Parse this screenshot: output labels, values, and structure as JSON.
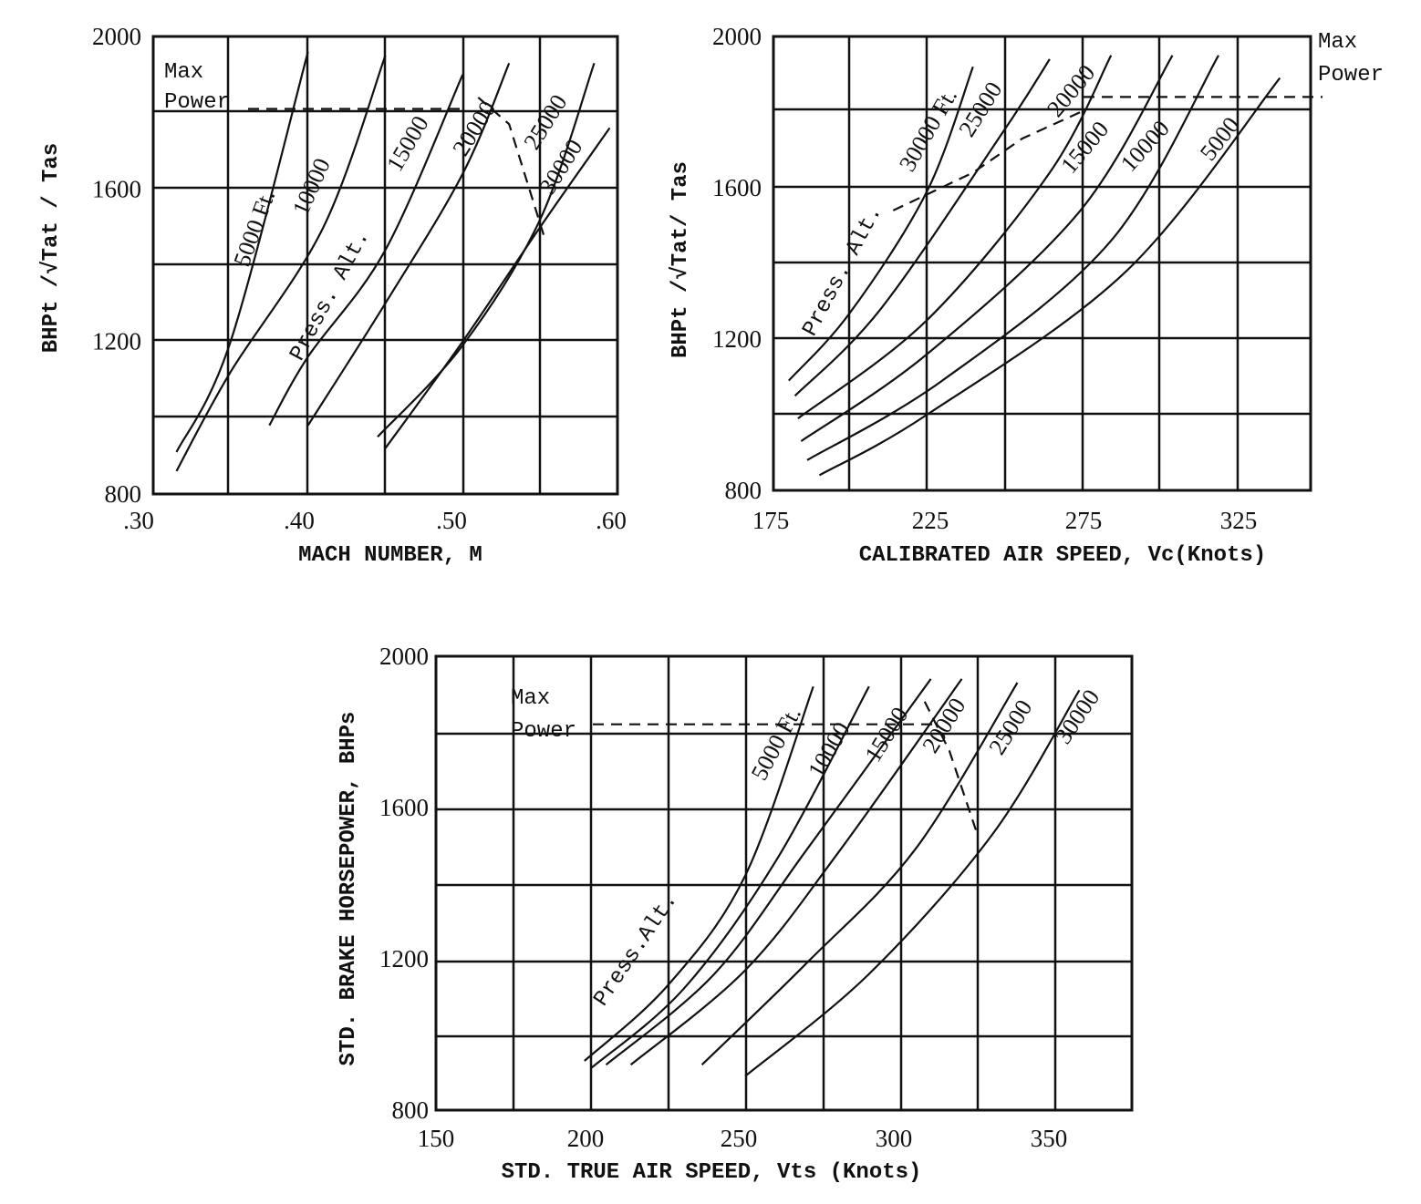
{
  "chart_data": [
    {
      "type": "line",
      "xlabel": "MACH NUMBER, M",
      "ylabel": "BHPt /√Tat / Tas",
      "xlim": [
        0.3,
        0.6
      ],
      "ylim": [
        800,
        2000
      ],
      "x_ticks": [
        ".30",
        ".40",
        ".50",
        ".60"
      ],
      "y_ticks": [
        "800",
        "1200",
        "1600",
        "2000"
      ],
      "max_power_label": [
        "Max",
        "Power"
      ],
      "max_power_value": 1810,
      "press_alt_label": "Press. Alt.",
      "series": [
        {
          "name": "5000 Ft.",
          "x": [
            0.315,
            0.35,
            0.4
          ],
          "y": [
            910,
            1200,
            1960
          ]
        },
        {
          "name": "10000",
          "x": [
            0.315,
            0.35,
            0.41,
            0.45
          ],
          "y": [
            860,
            1120,
            1500,
            1950
          ]
        },
        {
          "name": "15000",
          "x": [
            0.375,
            0.4,
            0.45,
            0.5
          ],
          "y": [
            980,
            1160,
            1440,
            1900
          ]
        },
        {
          "name": "20000",
          "x": [
            0.4,
            0.45,
            0.5,
            0.53
          ],
          "y": [
            980,
            1300,
            1640,
            1930
          ]
        },
        {
          "name": "25000",
          "x": [
            0.445,
            0.5,
            0.55,
            0.585
          ],
          "y": [
            950,
            1190,
            1520,
            1930
          ]
        },
        {
          "name": "30000",
          "x": [
            0.45,
            0.5,
            0.55,
            0.595
          ],
          "y": [
            920,
            1200,
            1500,
            1760
          ]
        }
      ],
      "limit_line": {
        "x": [
          0.51,
          0.53,
          0.553
        ],
        "y": [
          1840,
          1770,
          1470
        ]
      }
    },
    {
      "type": "line",
      "xlabel": "CALIBRATED AIR SPEED, Vc(Knots)",
      "ylabel": "BHPt /√Tat/ Tas",
      "xlim": [
        175,
        350
      ],
      "ylim": [
        800,
        2000
      ],
      "x_ticks": [
        "175",
        "225",
        "275",
        "325"
      ],
      "y_ticks": [
        "800",
        "1200",
        "1600",
        "2000"
      ],
      "max_power_label": [
        "Max",
        "Power"
      ],
      "max_power_value": 1840,
      "press_alt_label": "Press. Alt.",
      "series": [
        {
          "name": "30000 Ft.",
          "x": [
            180,
            200,
            225,
            240
          ],
          "y": [
            1090,
            1270,
            1590,
            1920
          ]
        },
        {
          "name": "25000",
          "x": [
            182,
            210,
            250,
            265
          ],
          "y": [
            1050,
            1280,
            1750,
            1940
          ]
        },
        {
          "name": "20000",
          "x": [
            183,
            225,
            265,
            285
          ],
          "y": [
            990,
            1250,
            1640,
            1950
          ]
        },
        {
          "name": "15000",
          "x": [
            184,
            225,
            275,
            305
          ],
          "y": [
            930,
            1160,
            1540,
            1950
          ]
        },
        {
          "name": "10000",
          "x": [
            186,
            230,
            285,
            320
          ],
          "y": [
            880,
            1090,
            1460,
            1950
          ]
        },
        {
          "name": "5000",
          "x": [
            190,
            225,
            290,
            340
          ],
          "y": [
            840,
            1000,
            1380,
            1890
          ]
        }
      ],
      "limit_line": {
        "x": [
          214,
          240,
          256,
          275
        ],
        "y": [
          1540,
          1640,
          1730,
          1800
        ]
      }
    },
    {
      "type": "line",
      "xlabel": "STD. TRUE AIR SPEED, Vts (Knots)",
      "ylabel": "STD. BRAKE HORSEPOWER, BHPs",
      "xlim": [
        150,
        375
      ],
      "ylim": [
        800,
        2000
      ],
      "x_ticks": [
        "150",
        "200",
        "250",
        "300",
        "350"
      ],
      "y_ticks": [
        "800",
        "1200",
        "1600",
        "2000"
      ],
      "max_power_label": [
        "Max",
        "Power"
      ],
      "max_power_value": 1820,
      "press_alt_label": "Press.Alt.",
      "series": [
        {
          "name": "5000 Ft.",
          "x": [
            198,
            225,
            250,
            272
          ],
          "y": [
            930,
            1130,
            1420,
            1920
          ]
        },
        {
          "name": "10000",
          "x": [
            200,
            230,
            260,
            290
          ],
          "y": [
            910,
            1120,
            1460,
            1920
          ]
        },
        {
          "name": "15000",
          "x": [
            205,
            240,
            270,
            310
          ],
          "y": [
            920,
            1160,
            1490,
            1940
          ]
        },
        {
          "name": "20000",
          "x": [
            213,
            250,
            280,
            320
          ],
          "y": [
            920,
            1170,
            1480,
            1940
          ]
        },
        {
          "name": "25000",
          "x": [
            236,
            270,
            305,
            338
          ],
          "y": [
            920,
            1190,
            1490,
            1930
          ]
        },
        {
          "name": "30000",
          "x": [
            250,
            290,
            330,
            358
          ],
          "y": [
            890,
            1160,
            1530,
            1910
          ]
        }
      ],
      "limit_line": {
        "x": [
          308,
          316,
          325
        ],
        "y": [
          1880,
          1750,
          1530
        ]
      }
    }
  ]
}
